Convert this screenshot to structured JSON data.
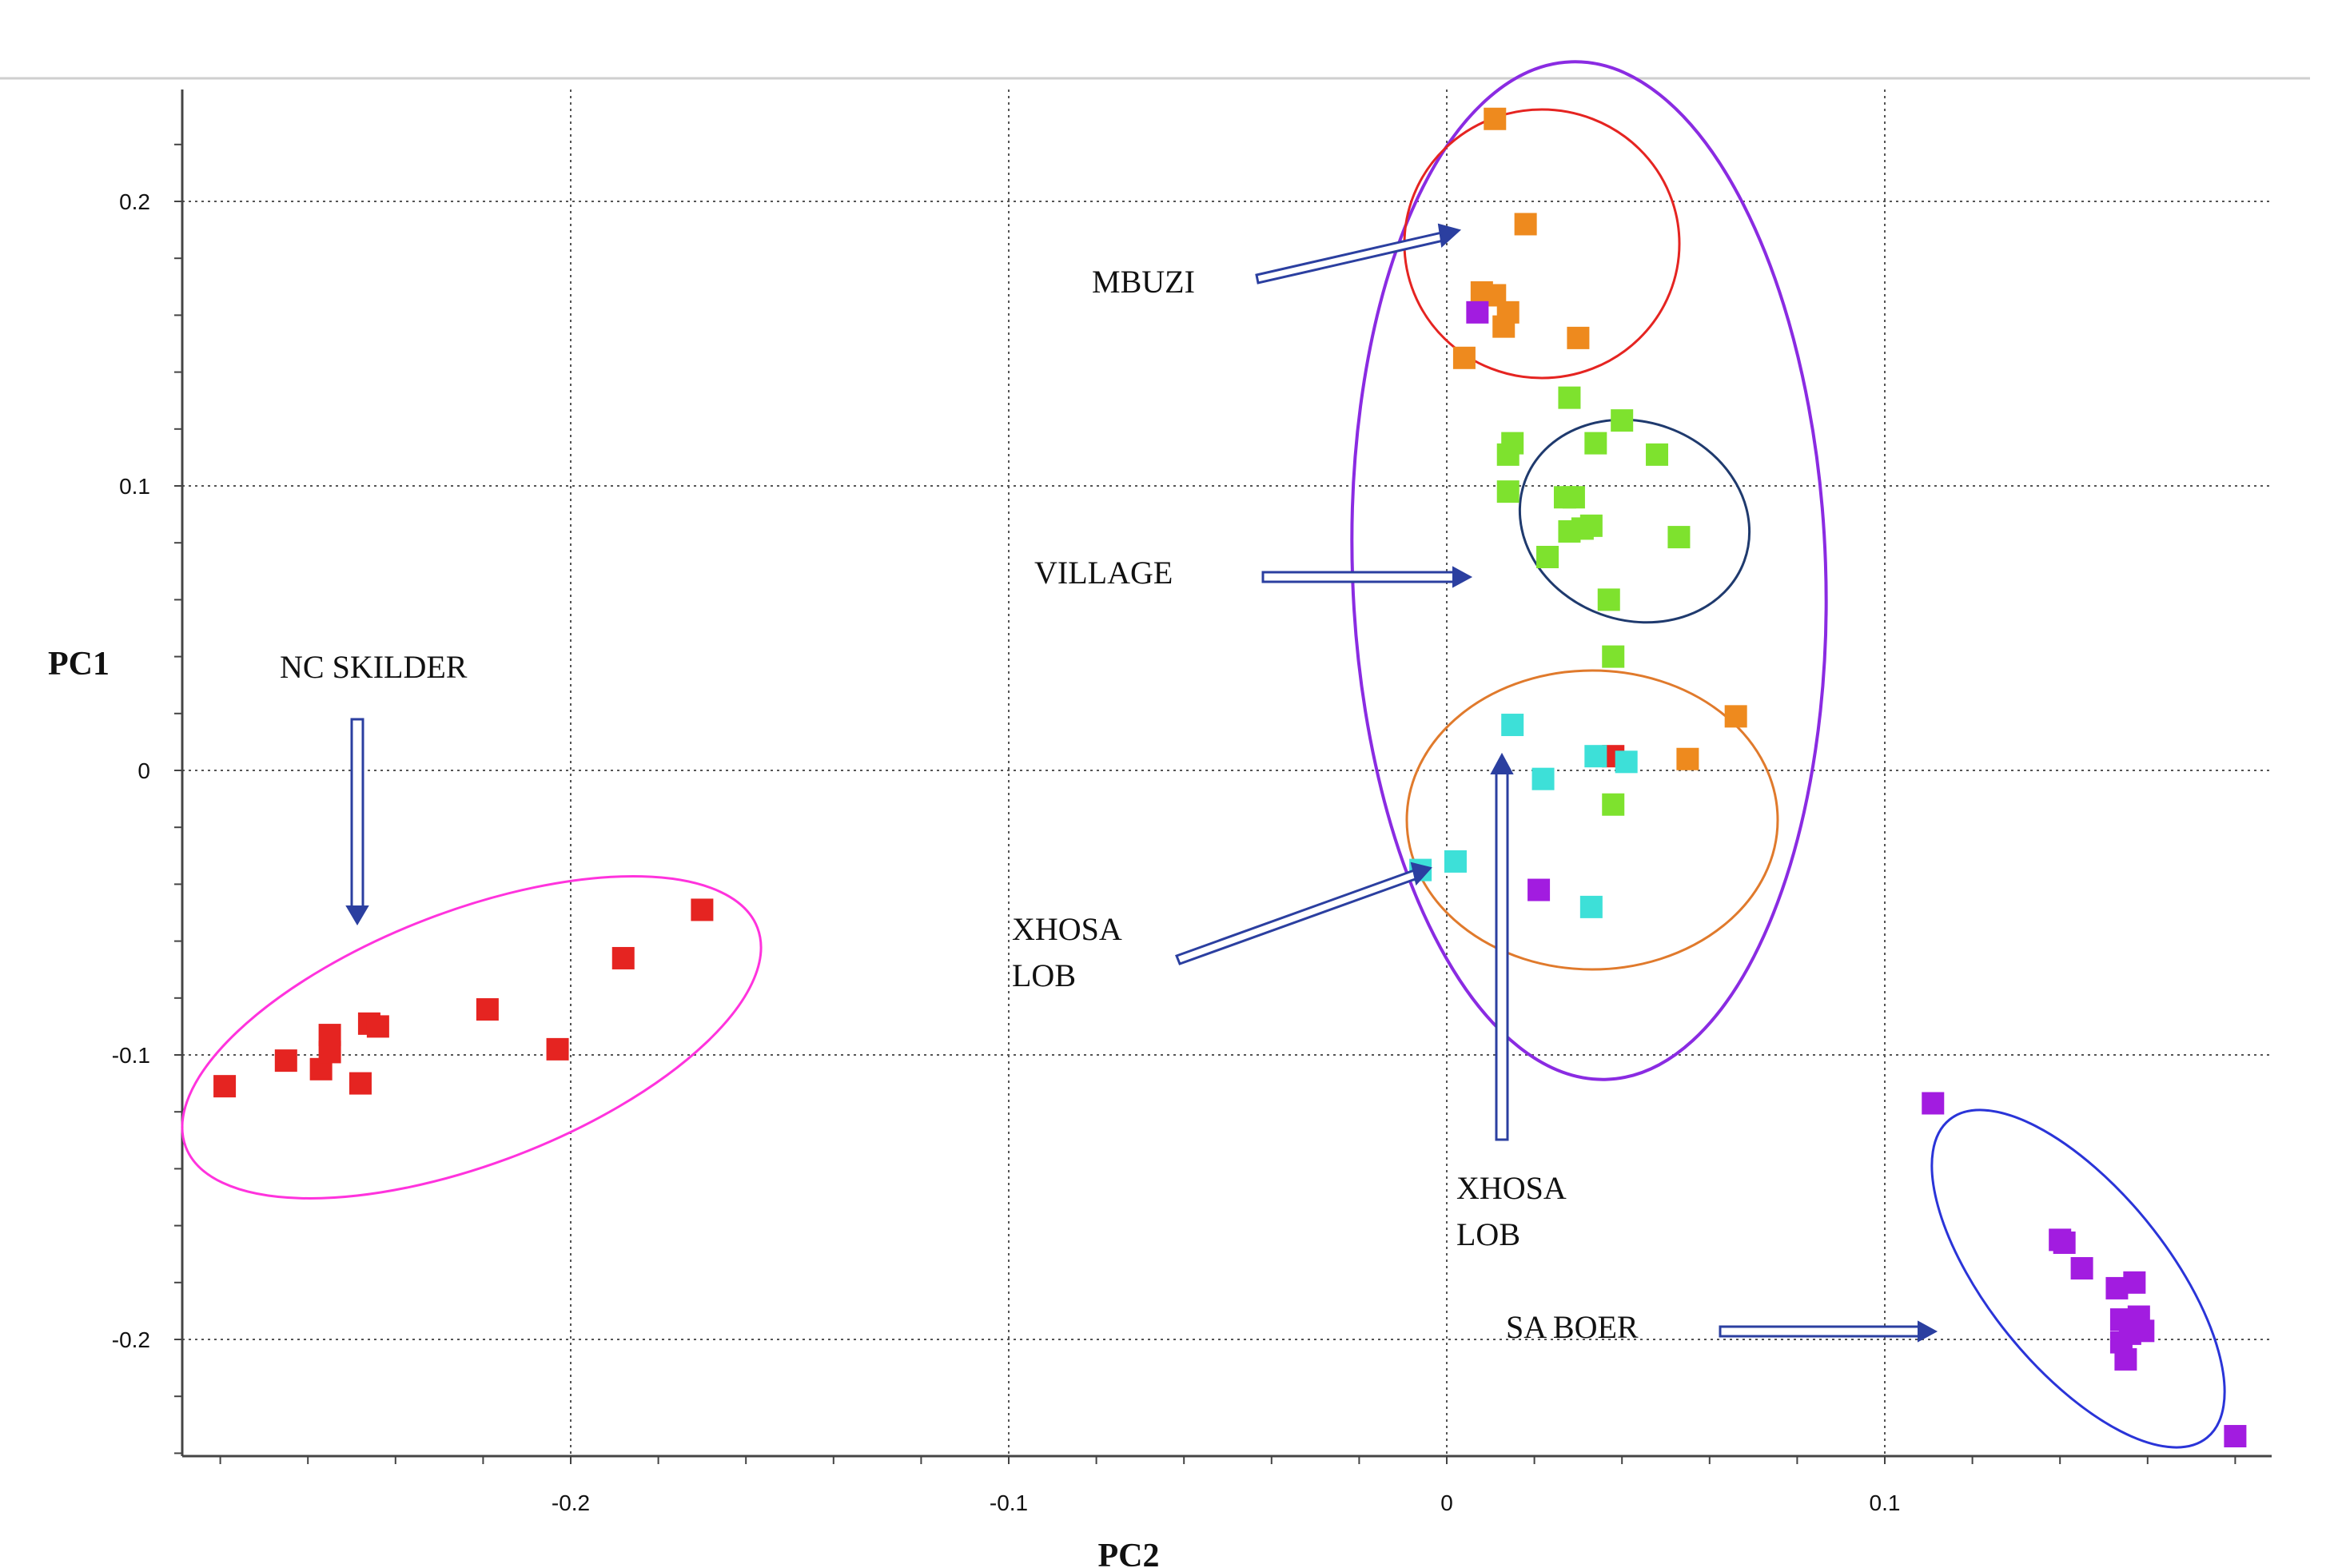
{
  "chart_data": {
    "type": "scatter",
    "title": "",
    "xlabel": "PC2",
    "ylabel": "PC1",
    "xlim": [
      -0.29,
      0.19
    ],
    "ylim": [
      -0.24,
      0.24
    ],
    "x_ticks": [
      -0.2,
      -0.1,
      0,
      0.1
    ],
    "x_tick_labels": [
      "-0.2",
      "-0.1",
      "0",
      "0.1"
    ],
    "y_ticks": [
      0.2,
      0.1,
      0,
      -0.1,
      -0.2
    ],
    "y_tick_labels": [
      "0.2",
      "0.1",
      "0",
      "-0.1",
      "-0.2"
    ],
    "grid": true,
    "series": [
      {
        "name": "NC SKILDER",
        "color": "#e52421",
        "points": [
          {
            "x": -0.279,
            "y": -0.111
          },
          {
            "x": -0.265,
            "y": -0.102
          },
          {
            "x": -0.257,
            "y": -0.105
          },
          {
            "x": -0.255,
            "y": -0.093
          },
          {
            "x": -0.255,
            "y": -0.099
          },
          {
            "x": -0.248,
            "y": -0.11
          },
          {
            "x": -0.246,
            "y": -0.089
          },
          {
            "x": -0.244,
            "y": -0.09
          },
          {
            "x": -0.219,
            "y": -0.084
          },
          {
            "x": -0.203,
            "y": -0.098
          },
          {
            "x": -0.188,
            "y": -0.066
          },
          {
            "x": -0.17,
            "y": -0.049
          },
          {
            "x": 0.038,
            "y": 0.005
          }
        ]
      },
      {
        "name": "MBUZI",
        "color": "#ee8a1e",
        "points": [
          {
            "x": 0.011,
            "y": 0.229
          },
          {
            "x": 0.018,
            "y": 0.192
          },
          {
            "x": 0.008,
            "y": 0.168
          },
          {
            "x": 0.011,
            "y": 0.167
          },
          {
            "x": 0.014,
            "y": 0.161
          },
          {
            "x": 0.013,
            "y": 0.156
          },
          {
            "x": 0.03,
            "y": 0.152
          },
          {
            "x": 0.004,
            "y": 0.145
          },
          {
            "x": 0.055,
            "y": 0.004
          },
          {
            "x": 0.066,
            "y": 0.019
          }
        ]
      },
      {
        "name": "VILLAGE",
        "color": "#7ee22e",
        "points": [
          {
            "x": 0.028,
            "y": 0.131
          },
          {
            "x": 0.04,
            "y": 0.123
          },
          {
            "x": 0.015,
            "y": 0.115
          },
          {
            "x": 0.014,
            "y": 0.111
          },
          {
            "x": 0.034,
            "y": 0.115
          },
          {
            "x": 0.048,
            "y": 0.111
          },
          {
            "x": 0.014,
            "y": 0.098
          },
          {
            "x": 0.027,
            "y": 0.096
          },
          {
            "x": 0.029,
            "y": 0.096
          },
          {
            "x": 0.028,
            "y": 0.084
          },
          {
            "x": 0.031,
            "y": 0.085
          },
          {
            "x": 0.033,
            "y": 0.086
          },
          {
            "x": 0.053,
            "y": 0.082
          },
          {
            "x": 0.023,
            "y": 0.075
          },
          {
            "x": 0.037,
            "y": 0.06
          },
          {
            "x": 0.038,
            "y": 0.04
          },
          {
            "x": 0.038,
            "y": -0.012
          }
        ]
      },
      {
        "name": "XHOSA LOB",
        "color": "#3de0d8",
        "points": [
          {
            "x": 0.015,
            "y": 0.016
          },
          {
            "x": 0.034,
            "y": 0.005
          },
          {
            "x": 0.041,
            "y": 0.003
          },
          {
            "x": 0.022,
            "y": -0.003
          },
          {
            "x": 0.002,
            "y": -0.032
          },
          {
            "x": -0.006,
            "y": -0.035
          },
          {
            "x": 0.033,
            "y": -0.048
          }
        ]
      },
      {
        "name": "SA BOER",
        "color": "#a21ce0",
        "points": [
          {
            "x": 0.007,
            "y": 0.161
          },
          {
            "x": 0.021,
            "y": -0.042
          },
          {
            "x": 0.111,
            "y": -0.117
          },
          {
            "x": 0.14,
            "y": -0.165
          },
          {
            "x": 0.141,
            "y": -0.166
          },
          {
            "x": 0.145,
            "y": -0.175
          },
          {
            "x": 0.153,
            "y": -0.182
          },
          {
            "x": 0.157,
            "y": -0.18
          },
          {
            "x": 0.154,
            "y": -0.193
          },
          {
            "x": 0.156,
            "y": -0.198
          },
          {
            "x": 0.158,
            "y": -0.192
          },
          {
            "x": 0.159,
            "y": -0.197
          },
          {
            "x": 0.154,
            "y": -0.201
          },
          {
            "x": 0.155,
            "y": -0.207
          },
          {
            "x": 0.18,
            "y": -0.234
          }
        ]
      }
    ],
    "annotations": [
      {
        "text": "NC SKILDER"
      },
      {
        "text": "MBUZI"
      },
      {
        "text": "VILLAGE"
      },
      {
        "text": "XHOSA\nLOB"
      },
      {
        "text": "XHOSA\nLOB"
      },
      {
        "text": "SA BOER"
      }
    ],
    "ellipse_colors": {
      "nc_skilder": "#ff33dd",
      "mbuzi": "#e52421",
      "village": "#1f3a6e",
      "xhosa_lob": "#e07a2c",
      "outer_group": "#8a2be2",
      "sa_boer": "#2a34d8"
    }
  }
}
